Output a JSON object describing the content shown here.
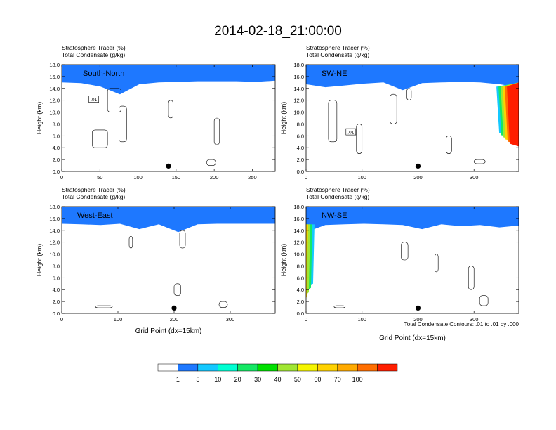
{
  "figure": {
    "title": "2014-02-18_21:00:00",
    "contour_note": "Total Condensate Contours: .01 to .01 by .000"
  },
  "colors": {
    "levels": [
      "#ffffff",
      "#1e78ff",
      "#14c8ff",
      "#00ffd2",
      "#14e864",
      "#00e000",
      "#a0e632",
      "#f5f500",
      "#ffd200",
      "#ffaa00",
      "#ff6e00",
      "#ff1e00"
    ]
  },
  "chart_data": [
    {
      "type": "heatmap",
      "panel_label": "South-North",
      "header": [
        "Stratosphere Tracer   (%)",
        "Total Condensate   (g/kg)"
      ],
      "ylabel": "Height (km)",
      "xlabel": "",
      "xlim": [
        0,
        280
      ],
      "ylim": [
        0,
        18
      ],
      "xticks": [
        0,
        50,
        100,
        150,
        200,
        250
      ],
      "yticks": [
        "0.0",
        "2.0",
        "4.0",
        "6.0",
        "8.0",
        "10.0",
        "12.0",
        "14.0",
        "16.0",
        "18.0"
      ],
      "tropopause_km": [
        15.3,
        15.2,
        14.6,
        13.3,
        15.0,
        15.3,
        15.4,
        15.5,
        15.5,
        15.5,
        15.4,
        15.6
      ],
      "point_marker": [
        140,
        0.9
      ],
      "contour_label": ".01"
    },
    {
      "type": "heatmap",
      "panel_label": "SW-NE",
      "header": [
        "Stratosphere Tracer   (%)",
        "Total Condensate   (g/kg)"
      ],
      "ylabel": "Height (km)",
      "xlabel": "",
      "xlim": [
        0,
        380
      ],
      "ylim": [
        0,
        18
      ],
      "xticks": [
        0,
        100,
        200,
        300
      ],
      "yticks": [
        "0.0",
        "2.0",
        "4.0",
        "6.0",
        "8.0",
        "10.0",
        "12.0",
        "14.0",
        "16.0",
        "18.0"
      ],
      "tropopause_km": [
        15.0,
        14.5,
        14.8,
        15.1,
        15.3,
        14.0,
        15.2,
        15.3,
        15.4,
        15.3,
        15.0,
        14.5
      ],
      "intrusion": {
        "x_start": 340,
        "x_end": 380,
        "bottom_km": 5.5
      },
      "point_marker": [
        200,
        0.9
      ],
      "contour_label": ".01"
    },
    {
      "type": "heatmap",
      "panel_label": "West-East",
      "header": [
        "Stratosphere Tracer   (%)",
        "Total Condensate   (g/kg)"
      ],
      "ylabel": "Height (km)",
      "xlabel": "Grid Point (dx=15km)",
      "xlim": [
        0,
        380
      ],
      "ylim": [
        0,
        18
      ],
      "xticks": [
        0,
        100,
        200,
        300
      ],
      "yticks": [
        "0.0",
        "2.0",
        "4.0",
        "6.0",
        "8.0",
        "10.0",
        "12.0",
        "14.0",
        "16.0",
        "18.0"
      ],
      "tropopause_km": [
        15.4,
        15.3,
        15.2,
        15.4,
        14.5,
        15.3,
        14.0,
        15.3,
        15.4,
        15.4,
        15.4,
        15.4
      ],
      "point_marker": [
        200,
        0.9
      ]
    },
    {
      "type": "heatmap",
      "panel_label": "NW-SE",
      "header": [
        "Stratosphere Tracer   (%)",
        "Total Condensate   (g/kg)"
      ],
      "ylabel": "Height (km)",
      "xlabel": "Grid Point (dx=15km)",
      "xlim": [
        0,
        380
      ],
      "ylim": [
        0,
        18
      ],
      "xticks": [
        0,
        100,
        200,
        300
      ],
      "yticks": [
        "0.0",
        "2.0",
        "4.0",
        "6.0",
        "8.0",
        "10.0",
        "12.0",
        "14.0",
        "16.0",
        "18.0"
      ],
      "tropopause_km": [
        14.0,
        15.2,
        15.3,
        15.4,
        15.3,
        15.2,
        14.5,
        15.3,
        15.0,
        15.2,
        14.8,
        15.1
      ],
      "intrusion": {
        "x_start": 0,
        "x_end": 15,
        "bottom_km": 5.0
      },
      "point_marker": [
        200,
        0.9
      ]
    }
  ],
  "colorbar": {
    "labels": [
      "1",
      "5",
      "10",
      "20",
      "30",
      "40",
      "50",
      "60",
      "70",
      "100"
    ]
  }
}
